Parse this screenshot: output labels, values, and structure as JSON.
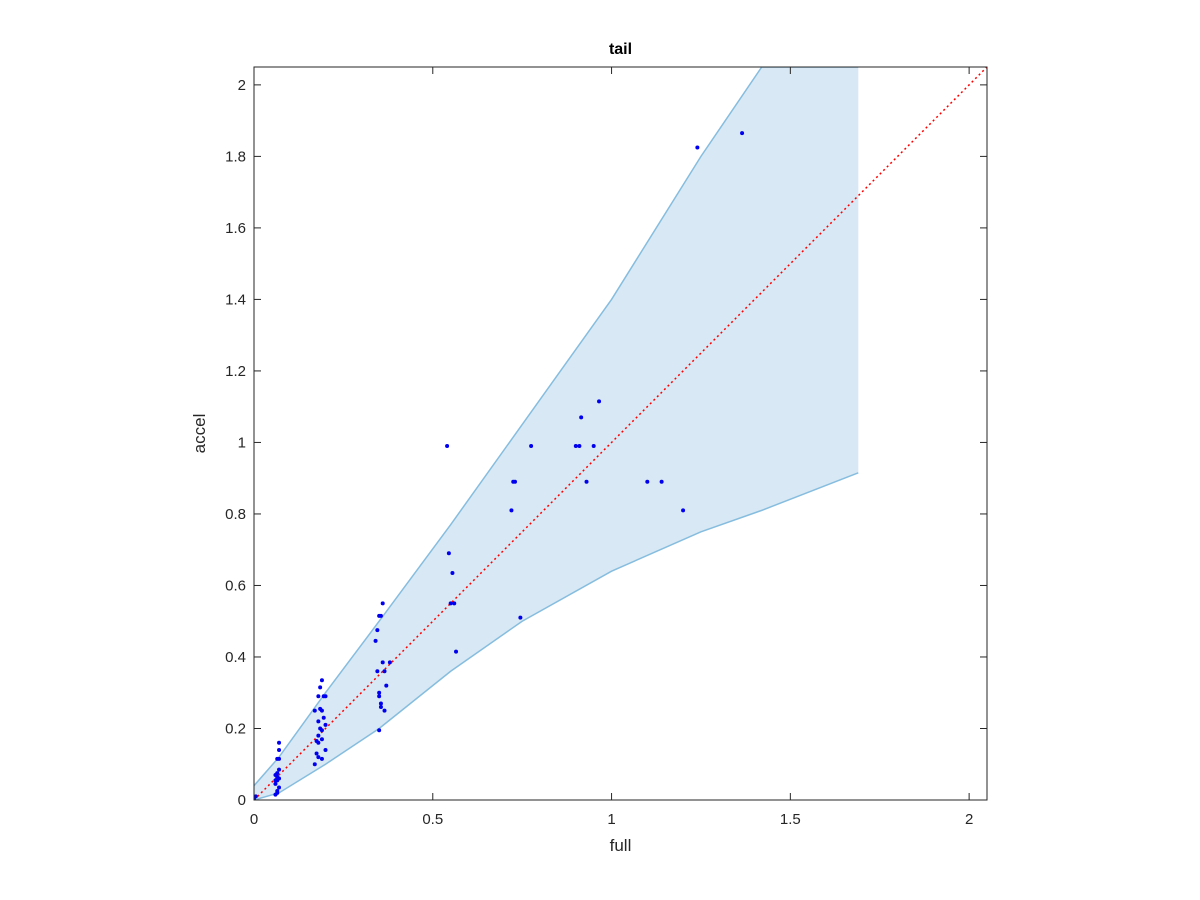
{
  "chart_data": {
    "type": "scatter",
    "title": "tail",
    "xlabel": "full",
    "ylabel": "accel",
    "xlim": [
      0,
      2.05
    ],
    "ylim": [
      0,
      2.05
    ],
    "xticks": [
      0,
      0.5,
      1,
      1.5,
      2
    ],
    "xtick_labels": [
      "0",
      "0.5",
      "1",
      "1.5",
      "2"
    ],
    "yticks": [
      0,
      0.2,
      0.4,
      0.6,
      0.8,
      1,
      1.2,
      1.4,
      1.6,
      1.8,
      2
    ],
    "ytick_labels": [
      "0",
      "0.2",
      "0.4",
      "0.6",
      "0.8",
      "1",
      "1.2",
      "1.4",
      "1.6",
      "1.8",
      "2"
    ],
    "grid": false,
    "colors": {
      "points": "#0000ee",
      "band_fill": "#d8e8f4",
      "band_edge": "#86bddf",
      "reference_line": "#ff0000",
      "axes": "#262626"
    },
    "reference_line": {
      "x": [
        0,
        2.05
      ],
      "y": [
        0,
        2.05
      ],
      "style": "dotted"
    },
    "band": {
      "x": [
        0,
        0.07,
        0.2,
        0.35,
        0.55,
        0.75,
        1.0,
        1.25,
        1.42,
        1.69
      ],
      "upper": [
        0.04,
        0.12,
        0.3,
        0.5,
        0.77,
        1.05,
        1.4,
        1.8,
        2.05,
        2.05
      ],
      "lower": [
        0.0,
        0.02,
        0.1,
        0.2,
        0.36,
        0.5,
        0.64,
        0.75,
        0.81,
        0.915
      ]
    },
    "points": {
      "x": [
        0.0,
        0.005,
        0.0,
        0.06,
        0.065,
        0.07,
        0.06,
        0.065,
        0.07,
        0.06,
        0.065,
        0.07,
        0.06,
        0.065,
        0.07,
        0.065,
        0.07,
        0.07,
        0.065,
        0.17,
        0.18,
        0.19,
        0.2,
        0.18,
        0.19,
        0.175,
        0.185,
        0.2,
        0.19,
        0.18,
        0.195,
        0.17,
        0.185,
        0.19,
        0.18,
        0.195,
        0.2,
        0.185,
        0.175,
        0.19,
        0.18,
        0.345,
        0.35,
        0.35,
        0.355,
        0.36,
        0.34,
        0.345,
        0.35,
        0.355,
        0.36,
        0.365,
        0.37,
        0.35,
        0.355,
        0.365,
        0.38,
        0.54,
        0.545,
        0.55,
        0.56,
        0.565,
        0.555,
        0.725,
        0.73,
        0.72,
        0.745,
        0.775,
        0.9,
        0.91,
        0.915,
        0.93,
        0.95,
        0.965,
        1.1,
        1.14,
        1.2,
        1.24,
        1.365
      ],
      "y": [
        0.005,
        0.01,
        0.0,
        0.015,
        0.025,
        0.035,
        0.045,
        0.055,
        0.06,
        0.07,
        0.075,
        0.085,
        0.055,
        0.065,
        0.115,
        0.115,
        0.14,
        0.16,
        0.02,
        0.1,
        0.12,
        0.115,
        0.14,
        0.16,
        0.17,
        0.165,
        0.2,
        0.21,
        0.195,
        0.22,
        0.23,
        0.25,
        0.255,
        0.25,
        0.29,
        0.29,
        0.29,
        0.315,
        0.13,
        0.335,
        0.18,
        0.36,
        0.29,
        0.195,
        0.27,
        0.385,
        0.445,
        0.475,
        0.515,
        0.515,
        0.55,
        0.36,
        0.32,
        0.3,
        0.26,
        0.25,
        0.385,
        0.99,
        0.69,
        0.55,
        0.55,
        0.415,
        0.635,
        0.89,
        0.89,
        0.81,
        0.51,
        0.99,
        0.99,
        0.99,
        1.07,
        0.89,
        0.99,
        1.115,
        0.89,
        0.89,
        0.81,
        1.825,
        1.865
      ]
    }
  }
}
